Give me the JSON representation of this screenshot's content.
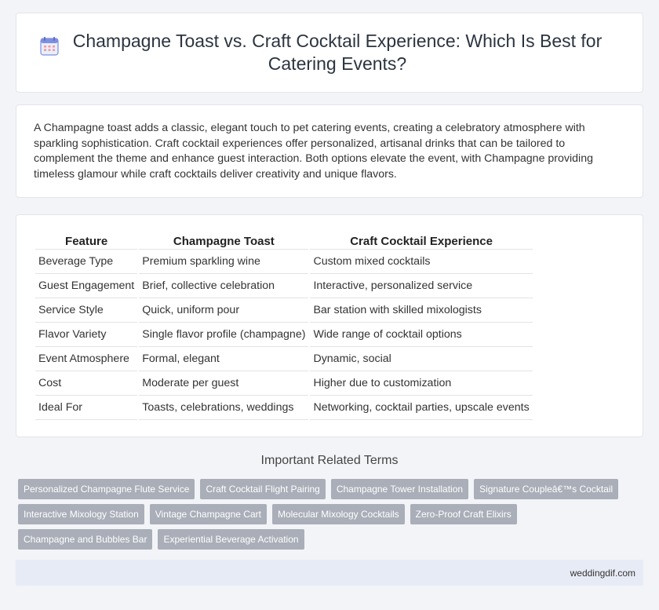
{
  "header": {
    "icon": "calendar-icon",
    "title": "Champagne Toast vs. Craft Cocktail Experience: Which Is Best for Catering Events?"
  },
  "intro": {
    "text": "A Champagne toast adds a classic, elegant touch to pet catering events, creating a celebratory atmosphere with sparkling sophistication. Craft cocktail experiences offer personalized, artisanal drinks that can be tailored to complement the theme and enhance guest interaction. Both options elevate the event, with Champagne providing timeless glamour while craft cocktails deliver creativity and unique flavors."
  },
  "table": {
    "headers": [
      "Feature",
      "Champagne Toast",
      "Craft Cocktail Experience"
    ],
    "rows": [
      [
        "Beverage Type",
        "Premium sparkling wine",
        "Custom mixed cocktails"
      ],
      [
        "Guest Engagement",
        "Brief, collective celebration",
        "Interactive, personalized service"
      ],
      [
        "Service Style",
        "Quick, uniform pour",
        "Bar station with skilled mixologists"
      ],
      [
        "Flavor Variety",
        "Single flavor profile (champagne)",
        "Wide range of cocktail options"
      ],
      [
        "Event Atmosphere",
        "Formal, elegant",
        "Dynamic, social"
      ],
      [
        "Cost",
        "Moderate per guest",
        "Higher due to customization"
      ],
      [
        "Ideal For",
        "Toasts, celebrations, weddings",
        "Networking, cocktail parties, upscale events"
      ]
    ]
  },
  "related": {
    "title": "Important Related Terms",
    "tags": [
      "Personalized Champagne Flute Service",
      "Craft Cocktail Flight Pairing",
      "Champagne Tower Installation",
      "Signature Coupleâ€™s Cocktail",
      "Interactive Mixology Station",
      "Vintage Champagne Cart",
      "Molecular Mixology Cocktails",
      "Zero-Proof Craft Elixirs",
      "Champagne and Bubbles Bar",
      "Experiential Beverage Activation"
    ]
  },
  "footer": {
    "site": "weddingdif.com"
  },
  "colors": {
    "tag_bg": "#a9aeb8",
    "footer_bg": "#e7ebf5",
    "page_bg": "#f3f4f8"
  }
}
